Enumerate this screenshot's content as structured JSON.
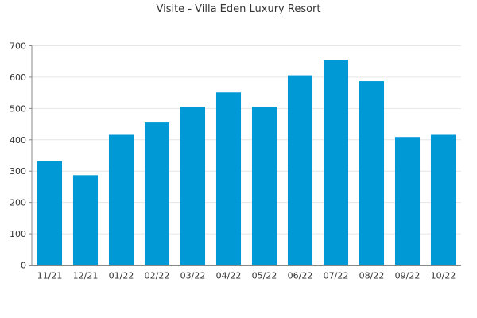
{
  "chart_data": {
    "type": "bar",
    "title": "Visite - Villa Eden Luxury Resort",
    "xlabel": "",
    "ylabel": "",
    "categories": [
      "11/21",
      "12/21",
      "01/22",
      "02/22",
      "03/22",
      "04/22",
      "05/22",
      "06/22",
      "07/22",
      "08/22",
      "09/22",
      "10/22"
    ],
    "values": [
      332,
      287,
      416,
      455,
      505,
      551,
      505,
      606,
      655,
      587,
      409,
      416
    ],
    "ylim": [
      0,
      700
    ],
    "yticks": [
      0,
      100,
      200,
      300,
      400,
      500,
      600,
      700
    ],
    "grid": true,
    "bar_color": "#0099d6",
    "grid_color": "#e6e6e6",
    "axis_color": "#888888"
  }
}
